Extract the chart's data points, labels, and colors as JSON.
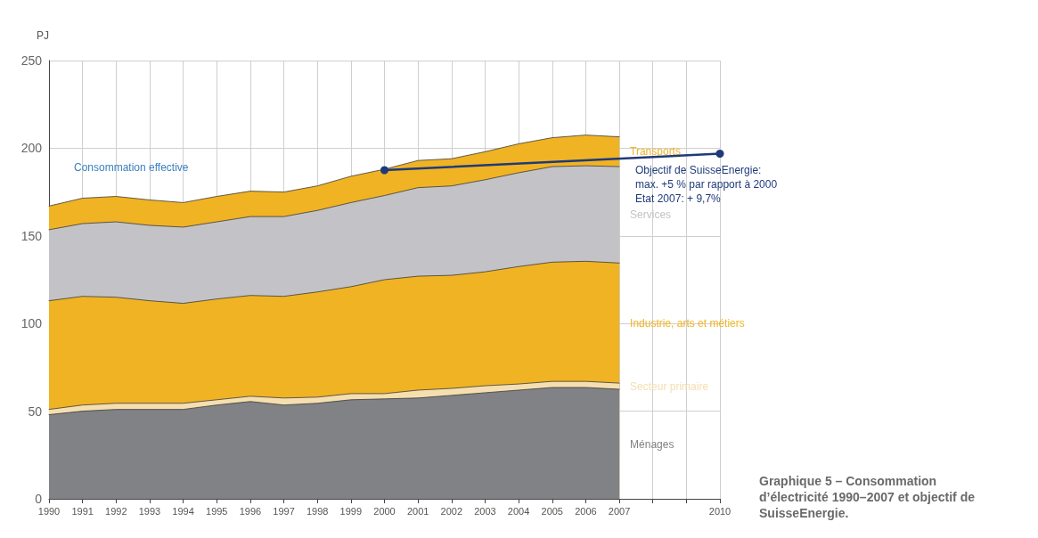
{
  "chart_data": {
    "type": "area",
    "stacked": true,
    "title": "Graphique 5 – Consommation d’électricité 1990–2007 et objectif de SuisseEnergie.",
    "ylabel": "PJ",
    "x": [
      1990,
      1991,
      1992,
      1993,
      1994,
      1995,
      1996,
      1997,
      1998,
      1999,
      2000,
      2001,
      2002,
      2003,
      2004,
      2005,
      2006,
      2007
    ],
    "series": [
      {
        "name": "Ménages",
        "color": "#808285",
        "values": [
          48,
          50,
          51,
          51,
          51,
          53.5,
          55.5,
          53.5,
          54.5,
          56.5,
          57,
          57.5,
          59,
          60.5,
          62,
          63.5,
          63.5,
          62.5
        ]
      },
      {
        "name": "Secteur primaire",
        "color": "#f5deb0",
        "values": [
          3,
          3.5,
          3.5,
          3.5,
          3.5,
          3,
          3,
          4,
          3.5,
          3.5,
          3,
          4.5,
          4,
          4,
          3.5,
          3.5,
          3.5,
          3.5
        ]
      },
      {
        "name": "Industrie, arts et métiers",
        "color": "#f0b323",
        "values": [
          62,
          62,
          60.5,
          58.5,
          57,
          57.5,
          57.5,
          58,
          60,
          61,
          65,
          65,
          64.5,
          65,
          67,
          68,
          68.5,
          68.5
        ]
      },
      {
        "name": "Services",
        "color": "#c3c3c7",
        "values": [
          40.5,
          41.5,
          43,
          43,
          43.5,
          44,
          45,
          45.5,
          46.5,
          48,
          48,
          50.5,
          51,
          52.5,
          53.5,
          54.5,
          54.5,
          55
        ]
      },
      {
        "name": "Transports",
        "color": "#f0b323",
        "values": [
          13.5,
          14.5,
          14.5,
          14.5,
          14,
          14.5,
          14.5,
          14,
          14,
          15,
          15,
          15.5,
          15.5,
          16,
          16.5,
          16.5,
          17.5,
          17
        ]
      },
      {
        "type": "line",
        "color": "#1f3a7a",
        "marker": "circle",
        "x": [
          2000,
          2010
        ],
        "values": [
          187.5,
          196.9
        ]
      }
    ],
    "xlim": [
      1990,
      2010
    ],
    "xticks": [
      1990,
      1991,
      1992,
      1993,
      1994,
      1995,
      1996,
      1997,
      1998,
      1999,
      2000,
      2001,
      2002,
      2003,
      2004,
      2005,
      2006,
      2007,
      {
        "value": 2008,
        "label": null
      },
      {
        "value": 2009,
        "label": null
      },
      2010
    ],
    "ylim": [
      0,
      250
    ],
    "yticks": [
      0,
      50,
      100,
      150,
      200,
      250
    ],
    "grid": true,
    "legend": false,
    "annotations": [
      "Consommation effective",
      {
        "text": "Objectif de SuisseEnergie:\nmax. +5 % par rapport à 2000\nEtat 2007: + 9,7%",
        "x": 2010,
        "y": 196.9
      }
    ]
  }
}
